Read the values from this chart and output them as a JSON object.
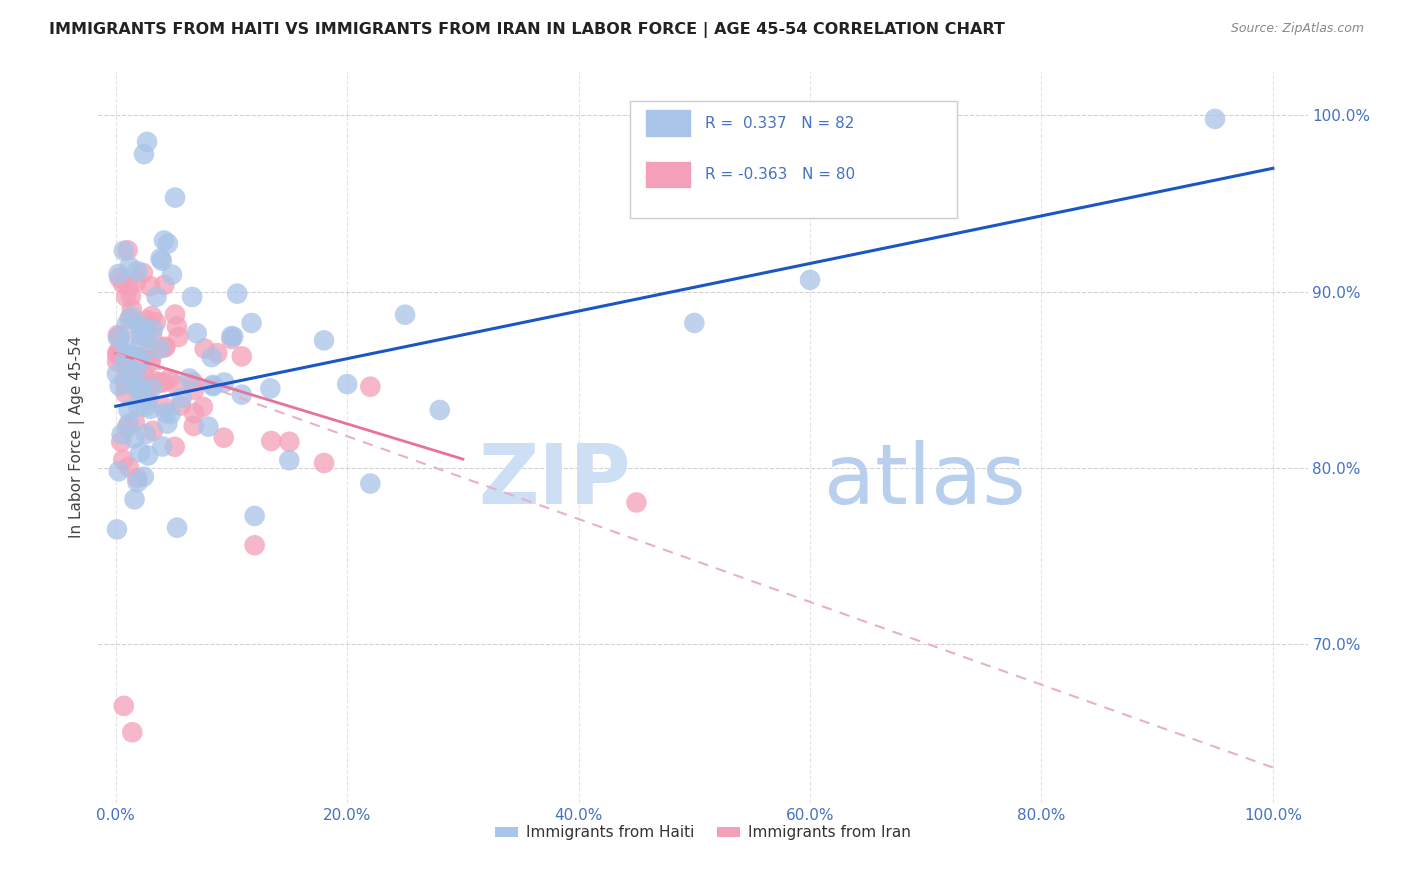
{
  "title": "IMMIGRANTS FROM HAITI VS IMMIGRANTS FROM IRAN IN LABOR FORCE | AGE 45-54 CORRELATION CHART",
  "source": "Source: ZipAtlas.com",
  "ylabel": "In Labor Force | Age 45-54",
  "y_ticks": [
    70.0,
    80.0,
    90.0,
    100.0
  ],
  "x_ticks": [
    0.0,
    20.0,
    40.0,
    60.0,
    80.0,
    100.0
  ],
  "haiti_color": "#a8c4e8",
  "iran_color": "#f4a0b8",
  "haiti_line_color": "#1a56c4",
  "iran_line_color": "#e8729a",
  "iran_dash_color": "#e8b0c8",
  "tick_color": "#4472c4",
  "watermark_zip_color": "#ccdff5",
  "watermark_atlas_color": "#b8d0ee",
  "legend_border_color": "#cccccc",
  "grid_color": "#cccccc",
  "haiti_line_x0": 0.0,
  "haiti_line_y0": 83.5,
  "haiti_line_x1": 100.0,
  "haiti_line_y1": 97.0,
  "iran_solid_x0": 0.0,
  "iran_solid_y0": 86.5,
  "iran_solid_x1": 30.0,
  "iran_solid_y1": 80.5,
  "iran_dash_x0": 0.0,
  "iran_dash_y0": 86.5,
  "iran_dash_x1": 100.0,
  "iran_dash_y1": 63.0,
  "xlim_min": -1.5,
  "xlim_max": 103.0,
  "ylim_min": 61.0,
  "ylim_max": 102.5
}
